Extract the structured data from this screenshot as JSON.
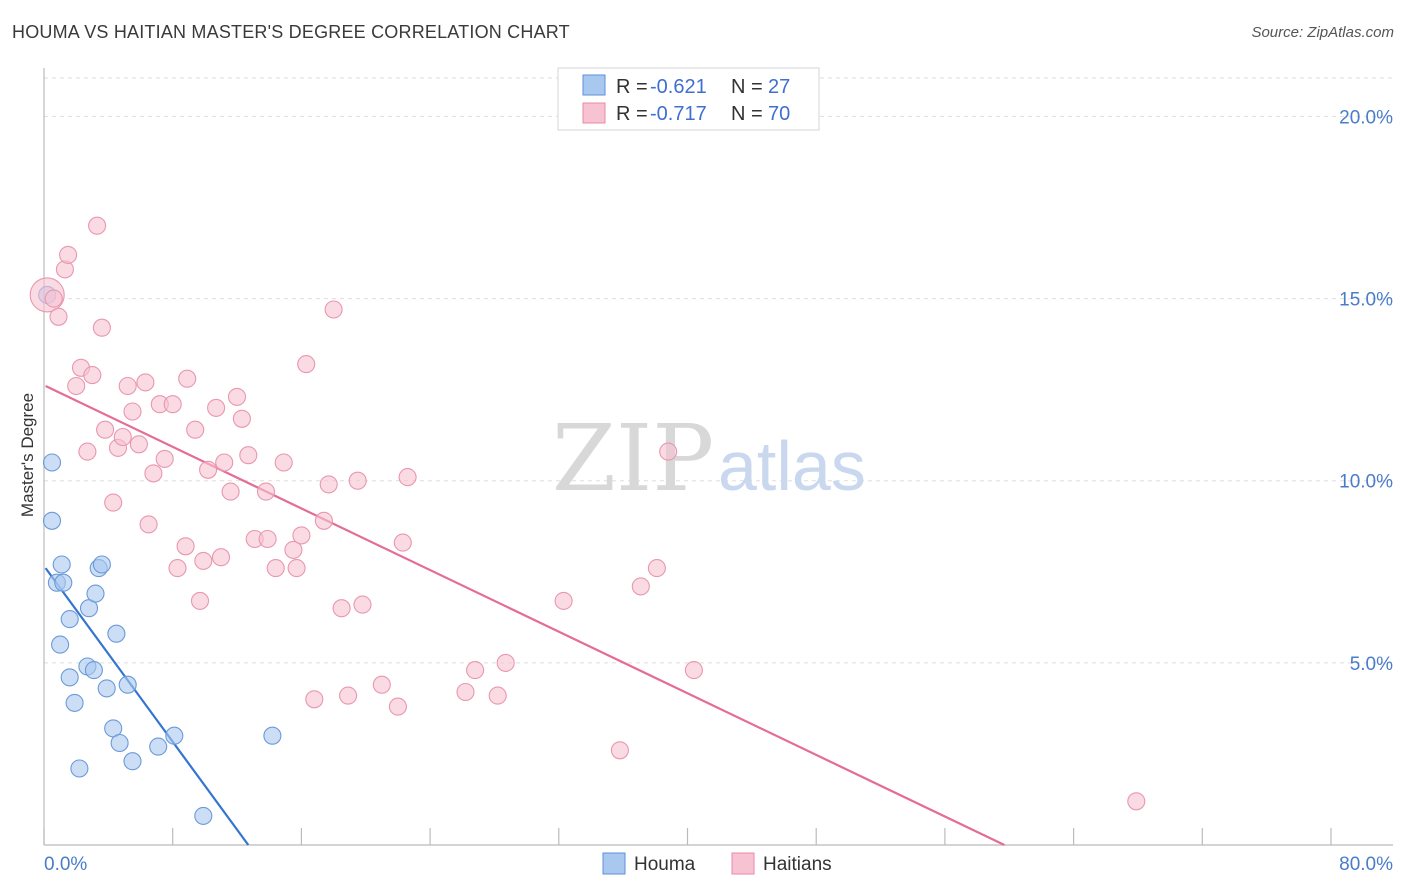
{
  "title": "HOUMA VS HAITIAN MASTER'S DEGREE CORRELATION CHART",
  "source": "Source: ZipAtlas.com",
  "watermark": {
    "zip": "ZIP",
    "atlas": "atlas"
  },
  "legend": {
    "r_label": "R =",
    "n_label": "N =",
    "rows": [
      {
        "r": "-0.621",
        "n": "27",
        "color": "#a9c8ef",
        "stroke": "#5e90d8"
      },
      {
        "r": "-0.717",
        "n": "70",
        "color": "#f7c3d2",
        "stroke": "#e989a6"
      }
    ]
  },
  "chart_data": {
    "type": "scatter",
    "title": "HOUMA VS HAITIAN MASTER'S DEGREE CORRELATION CHART",
    "ylabel": "Master's Degree",
    "xlabel": "",
    "xlim": [
      0,
      80
    ],
    "ylim": [
      0,
      21
    ],
    "x_tick_labels": [
      {
        "value": 0,
        "label": "0.0%"
      },
      {
        "value": 80,
        "label": "80.0%"
      }
    ],
    "y_tick_labels": [
      {
        "value": 5,
        "label": "5.0%"
      },
      {
        "value": 10,
        "label": "10.0%"
      },
      {
        "value": 15,
        "label": "15.0%"
      },
      {
        "value": 20,
        "label": "20.0%"
      }
    ],
    "grid": true,
    "series": [
      {
        "name": "Houma",
        "color": "#a9c8ef",
        "stroke": "#6b9ad8",
        "line_color": "#3475cf",
        "trend": {
          "x1": 0.1,
          "y1": 7.6,
          "x2": 12.7,
          "y2": 0
        },
        "points": [
          [
            0.2,
            15.1
          ],
          [
            0.5,
            10.5
          ],
          [
            0.5,
            8.9
          ],
          [
            0.8,
            7.2
          ],
          [
            1.1,
            7.7
          ],
          [
            1.2,
            7.2
          ],
          [
            1.0,
            5.5
          ],
          [
            1.6,
            6.2
          ],
          [
            1.6,
            4.6
          ],
          [
            1.9,
            3.9
          ],
          [
            2.2,
            2.1
          ],
          [
            2.8,
            6.5
          ],
          [
            2.7,
            4.9
          ],
          [
            3.1,
            4.8
          ],
          [
            3.2,
            6.9
          ],
          [
            3.4,
            7.6
          ],
          [
            3.6,
            7.7
          ],
          [
            3.9,
            4.3
          ],
          [
            4.3,
            3.2
          ],
          [
            4.5,
            5.8
          ],
          [
            4.7,
            2.8
          ],
          [
            5.2,
            4.4
          ],
          [
            5.5,
            2.3
          ],
          [
            7.1,
            2.7
          ],
          [
            8.1,
            3.0
          ],
          [
            9.9,
            0.8
          ],
          [
            14.2,
            3.0
          ]
        ]
      },
      {
        "name": "Haitians",
        "color": "#f7c3d2",
        "stroke": "#e897af",
        "line_color": "#e46c96",
        "trend": {
          "x1": 0.1,
          "y1": 12.6,
          "x2": 59.7,
          "y2": 0
        },
        "points": [
          [
            0.2,
            15.1
          ],
          [
            0.6,
            15.0
          ],
          [
            0.9,
            14.5
          ],
          [
            1.3,
            15.8
          ],
          [
            1.5,
            16.2
          ],
          [
            3.3,
            17.0
          ],
          [
            2.0,
            12.6
          ],
          [
            2.3,
            13.1
          ],
          [
            2.7,
            10.8
          ],
          [
            3.0,
            12.9
          ],
          [
            3.6,
            14.2
          ],
          [
            3.8,
            11.4
          ],
          [
            4.3,
            9.4
          ],
          [
            4.6,
            10.9
          ],
          [
            4.9,
            11.2
          ],
          [
            5.2,
            12.6
          ],
          [
            5.5,
            11.9
          ],
          [
            5.9,
            11.0
          ],
          [
            6.3,
            12.7
          ],
          [
            6.5,
            8.8
          ],
          [
            6.8,
            10.2
          ],
          [
            7.2,
            12.1
          ],
          [
            7.5,
            10.6
          ],
          [
            8.0,
            12.1
          ],
          [
            8.3,
            7.6
          ],
          [
            8.8,
            8.2
          ],
          [
            8.9,
            12.8
          ],
          [
            9.4,
            11.4
          ],
          [
            9.7,
            6.7
          ],
          [
            9.9,
            7.8
          ],
          [
            10.2,
            10.3
          ],
          [
            10.7,
            12.0
          ],
          [
            11.0,
            7.9
          ],
          [
            11.2,
            10.5
          ],
          [
            11.6,
            9.7
          ],
          [
            12.0,
            12.3
          ],
          [
            12.3,
            11.7
          ],
          [
            12.7,
            10.7
          ],
          [
            13.1,
            8.4
          ],
          [
            13.8,
            9.7
          ],
          [
            13.9,
            8.4
          ],
          [
            14.4,
            7.6
          ],
          [
            14.9,
            10.5
          ],
          [
            15.5,
            8.1
          ],
          [
            15.7,
            7.6
          ],
          [
            16.0,
            8.5
          ],
          [
            16.3,
            13.2
          ],
          [
            16.8,
            4.0
          ],
          [
            17.4,
            8.9
          ],
          [
            17.7,
            9.9
          ],
          [
            18.0,
            14.7
          ],
          [
            18.5,
            6.5
          ],
          [
            18.9,
            4.1
          ],
          [
            19.5,
            10.0
          ],
          [
            19.8,
            6.6
          ],
          [
            21.0,
            4.4
          ],
          [
            22.0,
            3.8
          ],
          [
            22.3,
            8.3
          ],
          [
            22.6,
            10.1
          ],
          [
            26.2,
            4.2
          ],
          [
            26.8,
            4.8
          ],
          [
            28.2,
            4.1
          ],
          [
            28.7,
            5.0
          ],
          [
            32.3,
            6.7
          ],
          [
            35.8,
            2.6
          ],
          [
            37.1,
            7.1
          ],
          [
            38.1,
            7.6
          ],
          [
            38.8,
            10.8
          ],
          [
            40.4,
            4.8
          ],
          [
            67.9,
            1.2
          ]
        ]
      }
    ]
  }
}
